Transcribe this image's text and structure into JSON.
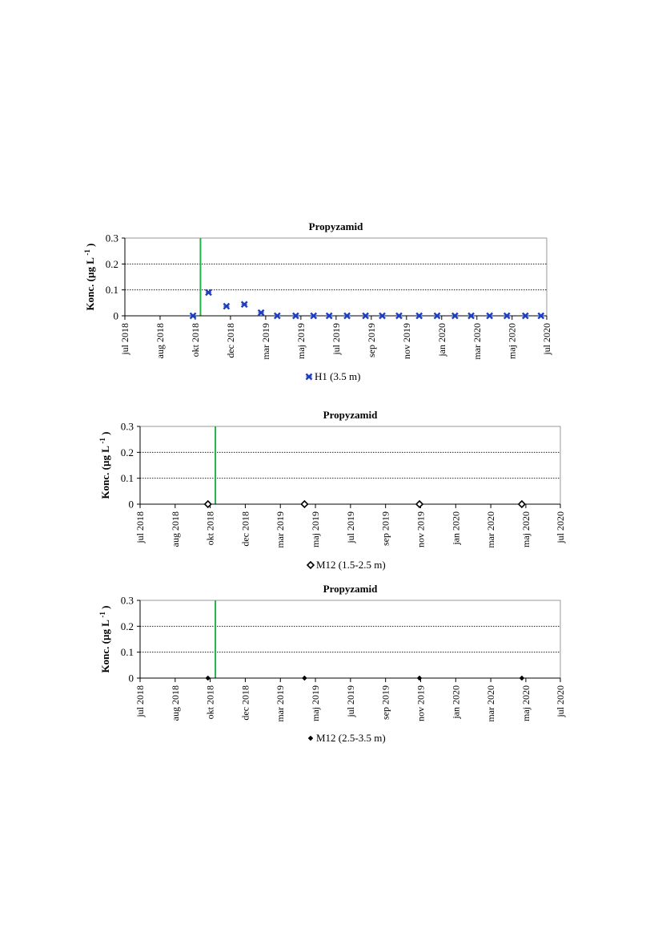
{
  "chart_data": [
    {
      "type": "scatter",
      "title": "Propyzamid",
      "ylabel": "Konc. (µg L",
      "ylabel_sup": "-1",
      "ylabel_close": ")",
      "ylim": [
        0,
        0.3
      ],
      "yticks": [
        0,
        0.1,
        0.2,
        0.3
      ],
      "yticklabels": [
        "0",
        "0.1",
        "0.2",
        "0.3"
      ],
      "grid": "horizontal dotted",
      "xlim": [
        "2018-07-01",
        "2020-07-01"
      ],
      "xticks": [
        "2018-07-01",
        "2018-08-31",
        "2018-10-31",
        "2018-12-31",
        "2019-03-02",
        "2019-05-02",
        "2019-07-02",
        "2019-09-01",
        "2019-11-01",
        "2020-01-01",
        "2020-03-02",
        "2020-05-02",
        "2020-07-01"
      ],
      "xticklabels": [
        "jul 2018",
        "aug 2018",
        "okt 2018",
        "dec 2018",
        "mar 2019",
        "maj 2019",
        "jul 2019",
        "sep 2019",
        "nov 2019",
        "jan 2020",
        "mar 2020",
        "maj 2020",
        "jul 2020"
      ],
      "vline_date": "2018-11-09",
      "vline_color": "#22b14c",
      "legend_position": "bottom-center",
      "series": [
        {
          "name": "H1 (3.5 m)",
          "marker": "asterisk-x",
          "color": "#1f3fbf",
          "x": [
            "2018-10-27",
            "2018-11-23",
            "2018-12-24",
            "2019-01-24",
            "2019-02-22",
            "2019-03-22",
            "2019-04-23",
            "2019-05-24",
            "2019-06-20",
            "2019-07-21",
            "2019-08-22",
            "2019-09-20",
            "2019-10-19",
            "2019-11-23",
            "2019-12-24",
            "2020-01-24",
            "2020-02-21",
            "2020-03-24",
            "2020-04-23",
            "2020-05-25",
            "2020-06-21"
          ],
          "y": [
            0,
            0.09,
            0.037,
            0.044,
            0.012,
            0,
            0,
            0,
            0,
            0,
            0,
            0,
            0,
            0,
            0,
            0,
            0,
            0,
            0,
            0,
            0
          ]
        }
      ]
    },
    {
      "type": "scatter",
      "title": "Propyzamid",
      "ylabel": "Konc. (µg L",
      "ylabel_sup": "-1",
      "ylabel_close": ")",
      "ylim": [
        0,
        0.3
      ],
      "yticks": [
        0,
        0.1,
        0.2,
        0.3
      ],
      "yticklabels": [
        "0",
        "0.1",
        "0.2",
        "0.3"
      ],
      "grid": "horizontal dotted",
      "xlim": [
        "2018-07-01",
        "2020-07-01"
      ],
      "xticks": [
        "2018-07-01",
        "2018-08-31",
        "2018-10-31",
        "2018-12-31",
        "2019-03-02",
        "2019-05-02",
        "2019-07-02",
        "2019-09-01",
        "2019-11-01",
        "2020-01-01",
        "2020-03-02",
        "2020-05-02",
        "2020-07-01"
      ],
      "xticklabels": [
        "jul 2018",
        "aug 2018",
        "okt 2018",
        "dec 2018",
        "mar 2019",
        "maj 2019",
        "jul 2019",
        "sep 2019",
        "nov 2019",
        "jan 2020",
        "mar 2020",
        "maj 2020",
        "jul 2020"
      ],
      "vline_date": "2018-11-09",
      "vline_color": "#22b14c",
      "legend_position": "bottom-center",
      "series": [
        {
          "name": "M12 (1.5-2.5 m)",
          "marker": "diamond-open",
          "color": "#000000",
          "x": [
            "2018-10-27",
            "2019-04-13",
            "2019-10-30",
            "2020-04-25"
          ],
          "y": [
            0,
            0,
            0,
            0
          ]
        }
      ]
    },
    {
      "type": "scatter",
      "title": "Propyzamid",
      "ylabel": "Konc. (µg L",
      "ylabel_sup": "-1",
      "ylabel_close": ")",
      "ylim": [
        0,
        0.3
      ],
      "yticks": [
        0,
        0.1,
        0.2,
        0.3
      ],
      "yticklabels": [
        "0",
        "0.1",
        "0.2",
        "0.3"
      ],
      "grid": "horizontal dotted",
      "xlim": [
        "2018-07-01",
        "2020-07-01"
      ],
      "xticks": [
        "2018-07-01",
        "2018-08-31",
        "2018-10-31",
        "2018-12-31",
        "2019-03-02",
        "2019-05-02",
        "2019-07-02",
        "2019-09-01",
        "2019-11-01",
        "2020-01-01",
        "2020-03-02",
        "2020-05-02",
        "2020-07-01"
      ],
      "xticklabels": [
        "jul 2018",
        "aug 2018",
        "okt 2018",
        "dec 2018",
        "mar 2019",
        "maj 2019",
        "jul 2019",
        "sep 2019",
        "nov 2019",
        "jan 2020",
        "mar 2020",
        "maj 2020",
        "jul 2020"
      ],
      "vline_date": "2018-11-09",
      "vline_color": "#22b14c",
      "legend_position": "bottom-center",
      "series": [
        {
          "name": "M12 (2.5-3.5 m)",
          "marker": "diamond-filled",
          "color": "#000000",
          "x": [
            "2018-10-27",
            "2019-04-13",
            "2019-10-30",
            "2020-04-25"
          ],
          "y": [
            0,
            0,
            0,
            0
          ]
        }
      ]
    }
  ]
}
